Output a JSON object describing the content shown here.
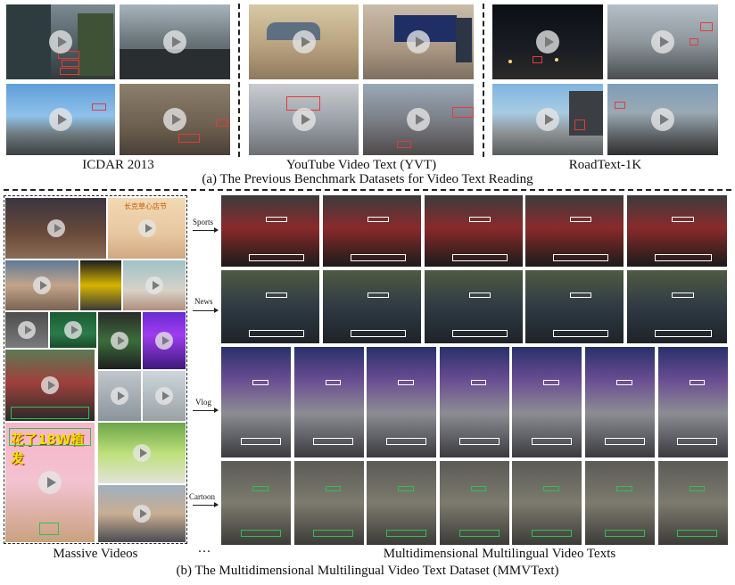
{
  "top_section": {
    "datasets": [
      {
        "label": "ICDAR 2013"
      },
      {
        "label": "YouTube Video Text (YVT)"
      },
      {
        "label": "RoadText-1K"
      }
    ],
    "caption": "(a) The Previous Benchmark Datasets for Video Text Reading"
  },
  "bottom_section": {
    "left_label": "Massive Videos",
    "ellipsis": "···",
    "right_label": "Multidimensional Multilingual Video Texts",
    "caption": "(b) The Multidimensional Multilingual Video Text Dataset (MMVText)",
    "rows": [
      {
        "label": "Sports"
      },
      {
        "label": "News"
      },
      {
        "label": "Vlog"
      },
      {
        "label": "Cartoon"
      }
    ],
    "mosaic_texts": {
      "title_text": "花了18W植发",
      "chip_text": "长克草心店节"
    }
  },
  "colors": {
    "annotation_red": "#e23b3b",
    "annotation_green": "#2fbf54",
    "annotation_white": "#ffffff"
  }
}
